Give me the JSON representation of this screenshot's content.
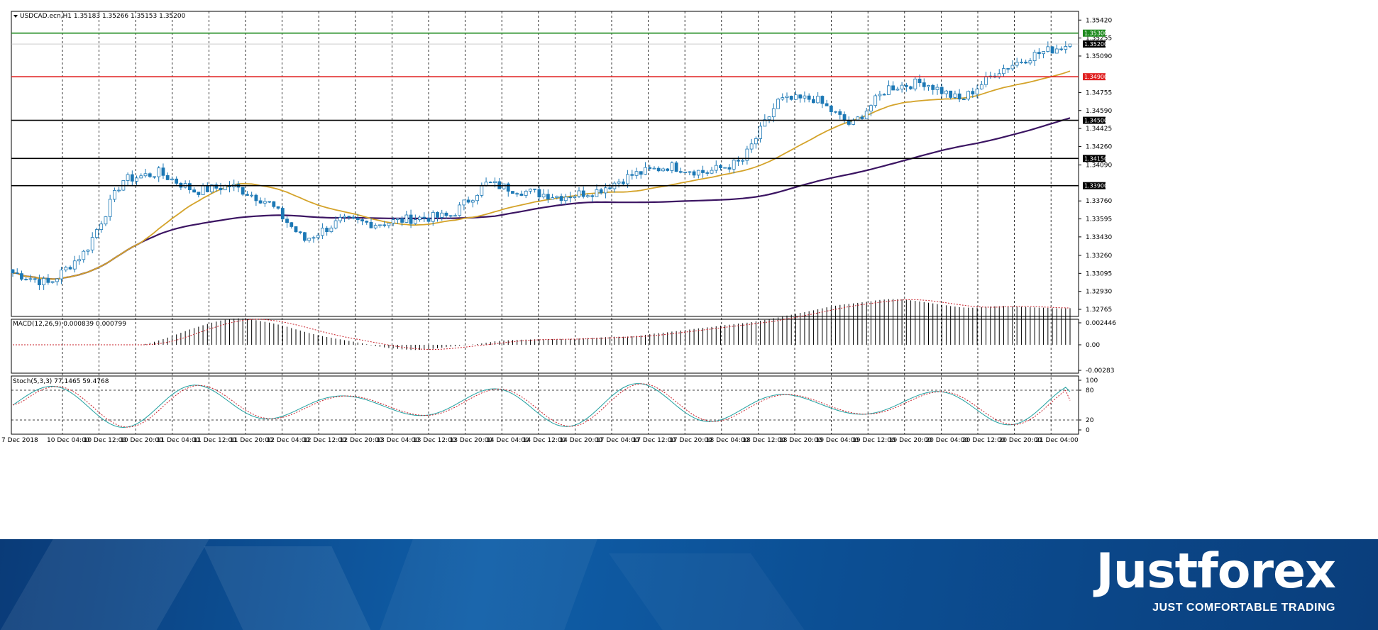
{
  "header": {
    "symbol_info": "USDCAD.ecn,H1  1.35183 1.35266 1.35153 1.35200"
  },
  "colors": {
    "bull_body": "#ffffff",
    "bear_body": "#1c78b5",
    "candle_border": "#1c78b5",
    "ma_fast": "#d4a32a",
    "ma_slow": "#3b1462",
    "line_green": "#1e8a1e",
    "line_red": "#e02020",
    "line_black": "#000000",
    "macd_hist": "#000000",
    "macd_signal": "#c8202a",
    "stoch_main": "#20a0a0",
    "stoch_signal": "#c8202a"
  },
  "chart_data": [
    {
      "type": "candlestick",
      "title": "USDCAD.ecn,H1",
      "ohlc_readout": [
        1.35183,
        1.35266,
        1.35153,
        1.352
      ],
      "ylim": [
        1.327,
        1.355
      ],
      "y_ticks": [
        "1.35420",
        "1.35255",
        "1.35090",
        "1.34755",
        "1.34590",
        "1.34425",
        "1.34260",
        "1.34090",
        "1.33760",
        "1.33595",
        "1.33430",
        "1.33260",
        "1.33095",
        "1.32930",
        "1.32765"
      ],
      "x_ticks": [
        "7 Dec 2018",
        "10 Dec 04:00",
        "10 Dec 12:00",
        "10 Dec 20:00",
        "11 Dec 04:00",
        "11 Dec 12:00",
        "11 Dec 20:00",
        "12 Dec 04:00",
        "12 Dec 12:00",
        "12 Dec 20:00",
        "13 Dec 04:00",
        "13 Dec 12:00",
        "13 Dec 20:00",
        "14 Dec 04:00",
        "14 Dec 12:00",
        "14 Dec 20:00",
        "17 Dec 04:00",
        "17 Dec 12:00",
        "17 Dec 20:00",
        "18 Dec 04:00",
        "18 Dec 12:00",
        "18 Dec 20:00",
        "19 Dec 04:00",
        "19 Dec 12:00",
        "19 Dec 20:00",
        "20 Dec 04:00",
        "20 Dec 12:00",
        "20 Dec 20:00",
        "21 Dec 04:00"
      ],
      "price_lines": [
        {
          "value": 1.353,
          "label": "1.35300",
          "color": "green"
        },
        {
          "value": 1.352,
          "label": "1.35200",
          "color": "current"
        },
        {
          "value": 1.349,
          "label": "1.34900",
          "color": "red"
        },
        {
          "value": 1.345,
          "label": "1.34500",
          "color": "black"
        },
        {
          "value": 1.3415,
          "label": "1.34150",
          "color": "black"
        },
        {
          "value": 1.339,
          "label": "1.33900",
          "color": "black"
        }
      ],
      "key_points": [
        {
          "x": "7 Dec 2018",
          "close": 1.331
        },
        {
          "x": "10 Dec 04:00",
          "close": 1.33
        },
        {
          "x": "10 Dec 12:00",
          "close": 1.333
        },
        {
          "x": "10 Dec 20:00",
          "close": 1.3395
        },
        {
          "x": "11 Dec 04:00",
          "close": 1.3402
        },
        {
          "x": "11 Dec 12:00",
          "close": 1.3385
        },
        {
          "x": "11 Dec 20:00",
          "close": 1.339
        },
        {
          "x": "12 Dec 04:00",
          "close": 1.3375
        },
        {
          "x": "12 Dec 12:00",
          "close": 1.334
        },
        {
          "x": "12 Dec 20:00",
          "close": 1.3358
        },
        {
          "x": "13 Dec 04:00",
          "close": 1.3355
        },
        {
          "x": "13 Dec 12:00",
          "close": 1.336
        },
        {
          "x": "13 Dec 20:00",
          "close": 1.3362
        },
        {
          "x": "14 Dec 04:00",
          "close": 1.3392
        },
        {
          "x": "14 Dec 12:00",
          "close": 1.3385
        },
        {
          "x": "14 Dec 20:00",
          "close": 1.338
        },
        {
          "x": "17 Dec 04:00",
          "close": 1.3385
        },
        {
          "x": "17 Dec 12:00",
          "close": 1.34
        },
        {
          "x": "17 Dec 20:00",
          "close": 1.3408
        },
        {
          "x": "18 Dec 04:00",
          "close": 1.3402
        },
        {
          "x": "18 Dec 12:00",
          "close": 1.3412
        },
        {
          "x": "18 Dec 20:00",
          "close": 1.3468
        },
        {
          "x": "19 Dec 04:00",
          "close": 1.347
        },
        {
          "x": "19 Dec 12:00",
          "close": 1.3445
        },
        {
          "x": "19 Dec 20:00",
          "close": 1.348
        },
        {
          "x": "20 Dec 04:00",
          "close": 1.3485
        },
        {
          "x": "20 Dec 12:00",
          "close": 1.3468
        },
        {
          "x": "20 Dec 20:00",
          "close": 1.3495
        },
        {
          "x": "21 Dec 04:00",
          "close": 1.351
        },
        {
          "x": "21 Dec 10:00",
          "close": 1.352
        }
      ]
    },
    {
      "type": "macd",
      "label": "MACD(12,26,9) 0.000839 0.000799",
      "params": [
        12,
        26,
        9
      ],
      "main": 0.000839,
      "signal": 0.000799,
      "y_ticks": [
        "0.002446",
        "0.00",
        "-0.00283"
      ]
    },
    {
      "type": "stochastic",
      "label": "Stoch(5,3,3) 77.1465 59.4768",
      "params": [
        5,
        3,
        3
      ],
      "main": 77.1465,
      "signal": 59.4768,
      "levels": [
        20,
        80
      ],
      "y_ticks": [
        "100",
        "80",
        "20",
        "0"
      ]
    }
  ],
  "footer": {
    "logo": "Justforex",
    "slogan": "JUST COMFORTABLE TRADING"
  }
}
